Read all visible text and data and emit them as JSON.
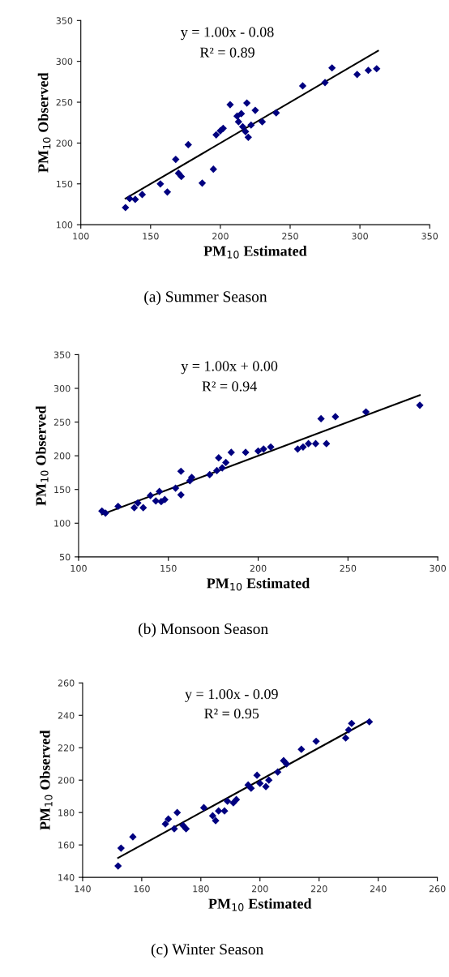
{
  "chart_data": [
    {
      "type": "scatter",
      "title": "(a) Summer Season",
      "xlabel": "PM$_{10}$ Estimated",
      "ylabel": "PM$_{10}$ Observed",
      "annotations": [
        "y = 1.00x - 0.08",
        "R² = 0.89"
      ],
      "xlim": [
        100,
        350
      ],
      "xticks": [
        100,
        150,
        200,
        250,
        300,
        350
      ],
      "ylim": [
        100,
        350
      ],
      "yticks": [
        100,
        150,
        200,
        250,
        300,
        350
      ],
      "grid": false,
      "legend": false,
      "marker": "diamond",
      "series": [
        {
          "color": "#000080",
          "x": [
            132,
            135,
            139,
            144,
            157,
            162,
            168,
            170,
            172,
            177,
            187,
            195,
            197,
            200,
            202,
            207,
            212,
            213,
            215,
            216,
            218,
            219,
            220,
            222,
            225,
            230,
            240,
            259,
            275,
            280,
            298,
            306,
            312
          ],
          "values": [
            121,
            132,
            131,
            137,
            150,
            140,
            180,
            163,
            159,
            198,
            151,
            168,
            210,
            215,
            218,
            247,
            233,
            226,
            236,
            220,
            214,
            249,
            207,
            222,
            240,
            226,
            237,
            270,
            274,
            292,
            284,
            289,
            291
          ]
        },
        {
          "type": "line",
          "color": "#000000",
          "marker": "none",
          "line_style": "solid",
          "x": [
            132,
            313
          ],
          "values": [
            132,
            313
          ]
        }
      ]
    },
    {
      "type": "scatter",
      "title": "(b) Monsoon Season",
      "xlabel": "PM$_{10}$ Estimated",
      "ylabel": "PM$_{10}$ Observed",
      "annotations": [
        "y = 1.00x + 0.00",
        "R² = 0.94"
      ],
      "xlim": [
        100,
        300
      ],
      "xticks": [
        100,
        150,
        200,
        250,
        300
      ],
      "ylim": [
        50,
        350
      ],
      "yticks": [
        50,
        100,
        150,
        200,
        250,
        300,
        350
      ],
      "grid": false,
      "legend": false,
      "marker": "diamond",
      "series": [
        {
          "color": "#000080",
          "x": [
            113,
            115,
            122,
            131,
            133,
            136,
            140,
            143,
            145,
            146,
            148,
            154,
            157,
            157,
            162,
            163,
            173,
            177,
            178,
            180,
            182,
            185,
            193,
            200,
            203,
            207,
            222,
            225,
            228,
            232,
            235,
            238,
            243,
            260,
            290
          ],
          "values": [
            118,
            115,
            125,
            123,
            130,
            123,
            141,
            133,
            147,
            132,
            135,
            152,
            177,
            142,
            163,
            168,
            172,
            178,
            197,
            182,
            190,
            205,
            205,
            207,
            210,
            213,
            210,
            213,
            218,
            218,
            255,
            218,
            258,
            265,
            275
          ]
        },
        {
          "type": "line",
          "color": "#000000",
          "marker": "none",
          "line_style": "solid",
          "x": [
            113,
            290
          ],
          "values": [
            113,
            290
          ]
        }
      ]
    },
    {
      "type": "scatter",
      "title": "(c) Winter Season",
      "xlabel": "PM$_{10}$ Estimated",
      "ylabel": "PM$_{10}$ Observed",
      "annotations": [
        "y = 1.00x - 0.09",
        "R² = 0.95"
      ],
      "xlim": [
        140,
        260
      ],
      "xticks": [
        140,
        160,
        180,
        200,
        220,
        240,
        260
      ],
      "ylim": [
        140,
        260
      ],
      "yticks": [
        140,
        160,
        180,
        200,
        220,
        240,
        260
      ],
      "grid": false,
      "legend": false,
      "marker": "diamond",
      "series": [
        {
          "color": "#000080",
          "x": [
            152,
            153,
            157,
            168,
            169,
            171,
            172,
            174,
            175,
            181,
            184,
            185,
            186,
            188,
            189,
            191,
            192,
            196,
            197,
            199,
            200,
            202,
            203,
            206,
            208,
            209,
            214,
            219,
            229,
            230,
            231,
            237
          ],
          "values": [
            147,
            158,
            165,
            173,
            176,
            170,
            180,
            172,
            170,
            183,
            178,
            175,
            181,
            181,
            187,
            186,
            188,
            197,
            195,
            203,
            198,
            196,
            200,
            205,
            212,
            210,
            219,
            224,
            226,
            231,
            235,
            236
          ]
        },
        {
          "type": "line",
          "color": "#000000",
          "marker": "none",
          "line_style": "solid",
          "x": [
            152,
            237
          ],
          "values": [
            152,
            237
          ]
        }
      ]
    }
  ]
}
